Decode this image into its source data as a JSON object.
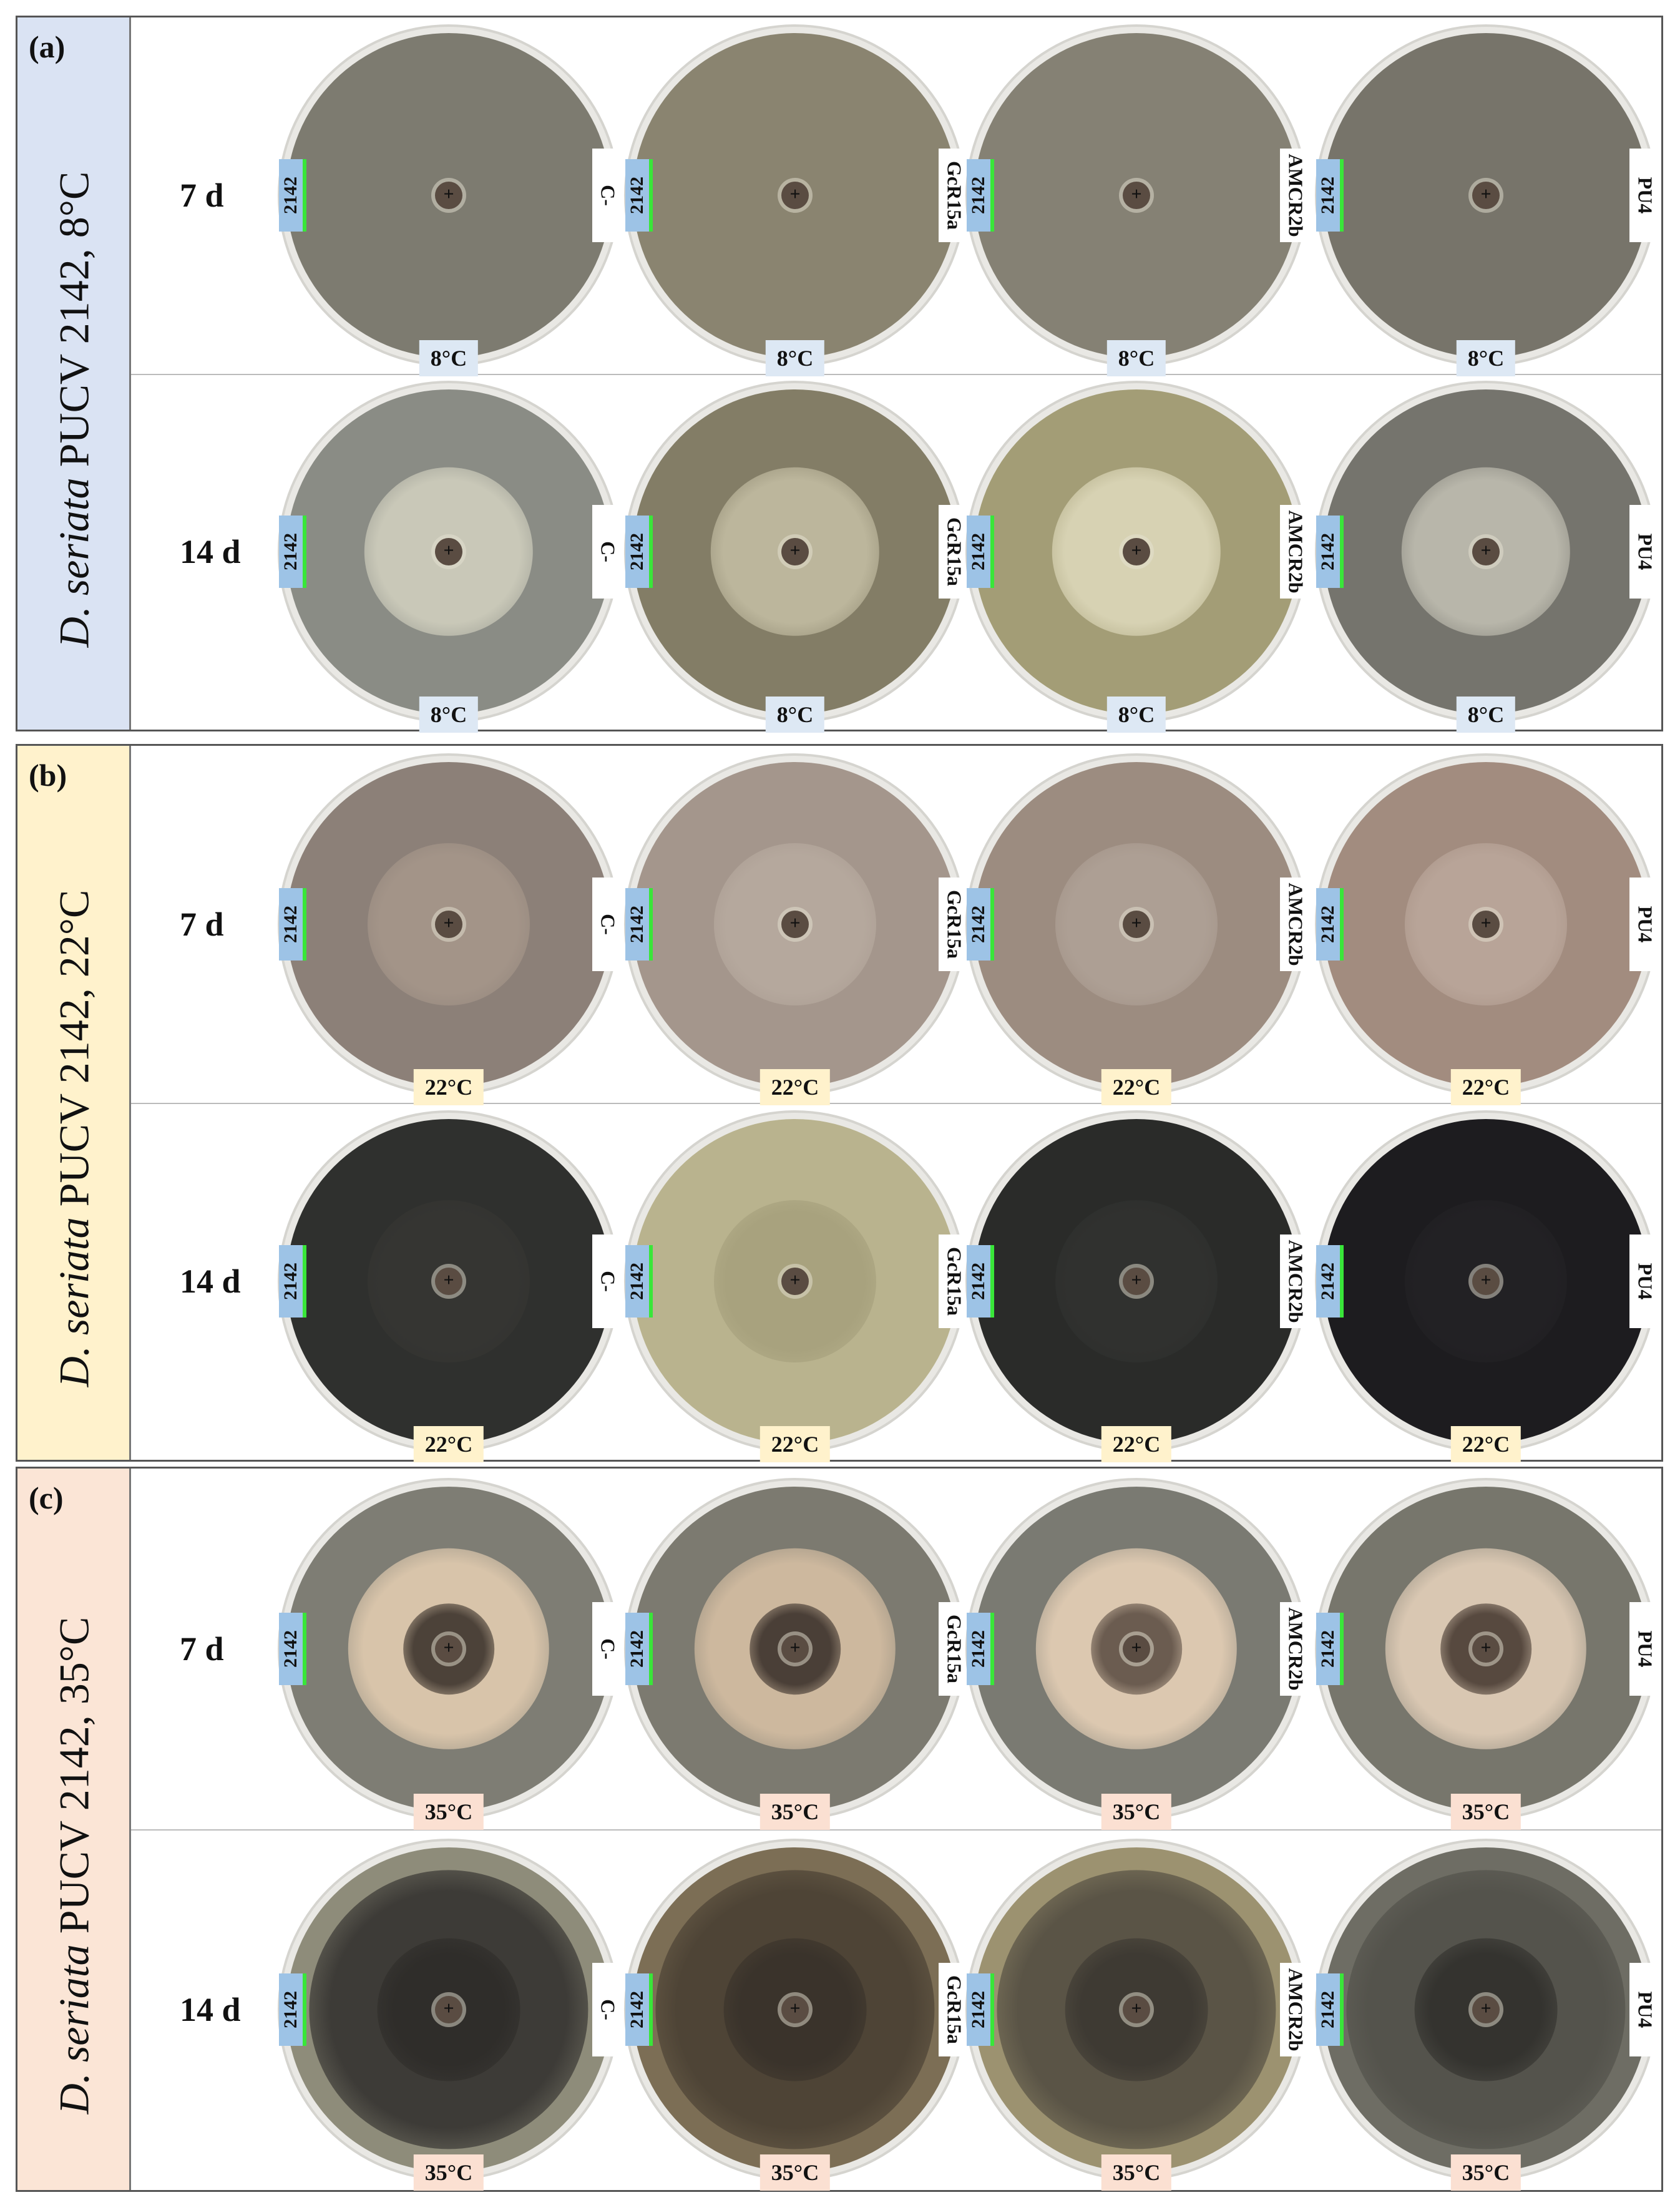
{
  "panels": [
    {
      "letter": "(a)",
      "species": "D. seriata",
      "title_rest": " PUCV 2142, 8°C",
      "side_color": "#dae3f3",
      "temp_label": "8°C",
      "temp_color": "#dde8f4",
      "rows": [
        {
          "label": "7 d",
          "plates": [
            {
              "isolate": "2142",
              "strain": "C-",
              "bg": "#7d7b70",
              "colony": "#7d7b70"
            },
            {
              "isolate": "2142",
              "strain": "GcR15a",
              "bg": "#8a8470",
              "colony": "#8a8470"
            },
            {
              "isolate": "2142",
              "strain": "AMCR2b",
              "bg": "#858174",
              "colony": "#858174"
            },
            {
              "isolate": "2142",
              "strain": "PU4",
              "bg": "#77746a",
              "colony": "#77746a"
            }
          ]
        },
        {
          "label": "14 d",
          "plates": [
            {
              "isolate": "2142",
              "strain": "C-",
              "bg": "#8a8c85",
              "colony": "#c9c8b8"
            },
            {
              "isolate": "2142",
              "strain": "GcR15a",
              "bg": "#837d66",
              "colony": "#bcb69c"
            },
            {
              "isolate": "2142",
              "strain": "AMCR2b",
              "bg": "#a39d76",
              "colony": "#d7d2b3"
            },
            {
              "isolate": "2142",
              "strain": "PU4",
              "bg": "#75746d",
              "colony": "#b8b6aa"
            }
          ]
        }
      ]
    },
    {
      "letter": "(b)",
      "species": "D. seriata",
      "title_rest": " PUCV 2142, 22°C",
      "side_color": "#fff2cc",
      "temp_label": "22°C",
      "temp_color": "#fff2cc",
      "rows": [
        {
          "label": "7 d",
          "plates": [
            {
              "isolate": "2142",
              "strain": "C-",
              "bg": "#8c8078",
              "colony": "#a39488"
            },
            {
              "isolate": "2142",
              "strain": "GcR15a",
              "bg": "#a4968c",
              "colony": "#b5a89d"
            },
            {
              "isolate": "2142",
              "strain": "AMCR2b",
              "bg": "#9c8c80",
              "colony": "#ad9f94"
            },
            {
              "isolate": "2142",
              "strain": "PU4",
              "bg": "#a28c7f",
              "colony": "#b8a498"
            }
          ]
        },
        {
          "label": "14 d",
          "plates": [
            {
              "isolate": "2142",
              "strain": "C-",
              "bg": "#2f302e",
              "colony": "#353532"
            },
            {
              "isolate": "2142",
              "strain": "GcR15a",
              "bg": "#b9b38e",
              "colony": "#a8a27e"
            },
            {
              "isolate": "2142",
              "strain": "AMCR2b",
              "bg": "#2a2b29",
              "colony": "#30312f"
            },
            {
              "isolate": "2142",
              "strain": "PU4",
              "bg": "#1d1c1f",
              "colony": "#222124"
            }
          ]
        }
      ]
    },
    {
      "letter": "(c)",
      "species": "D. seriata",
      "title_rest": " PUCV 2142, 35°C",
      "side_color": "#fbe5d6",
      "temp_label": "35°C",
      "temp_color": "#fbe0d2",
      "rows": [
        {
          "label": "7 d",
          "plates": [
            {
              "isolate": "2142",
              "strain": "C-",
              "bg": "#7e7d74",
              "colony": "#d8c4aa",
              "core": "#4c4239"
            },
            {
              "isolate": "2142",
              "strain": "GcR15a",
              "bg": "#7c7a70",
              "colony": "#cdb89e",
              "core": "#4a3f37"
            },
            {
              "isolate": "2142",
              "strain": "AMCR2b",
              "bg": "#7a7a72",
              "colony": "#dcc8b0",
              "core": "#6b5c50"
            },
            {
              "isolate": "2142",
              "strain": "PU4",
              "bg": "#77766c",
              "colony": "#d9c7b2",
              "core": "#57493f"
            }
          ]
        },
        {
          "label": "14 d",
          "plates": [
            {
              "isolate": "2142",
              "strain": "C-",
              "bg": "#8e8c7a",
              "colony": "#3d3b37",
              "core": "#2f2d2a"
            },
            {
              "isolate": "2142",
              "strain": "GcR15a",
              "bg": "#7c6e55",
              "colony": "#4e4436",
              "core": "#3a332b"
            },
            {
              "isolate": "2142",
              "strain": "AMCR2b",
              "bg": "#9c9270",
              "colony": "#5a5446",
              "core": "#3e3a33"
            },
            {
              "isolate": "2142",
              "strain": "PU4",
              "bg": "#6e6d64",
              "colony": "#54534c",
              "core": "#34332f"
            }
          ]
        }
      ]
    }
  ]
}
